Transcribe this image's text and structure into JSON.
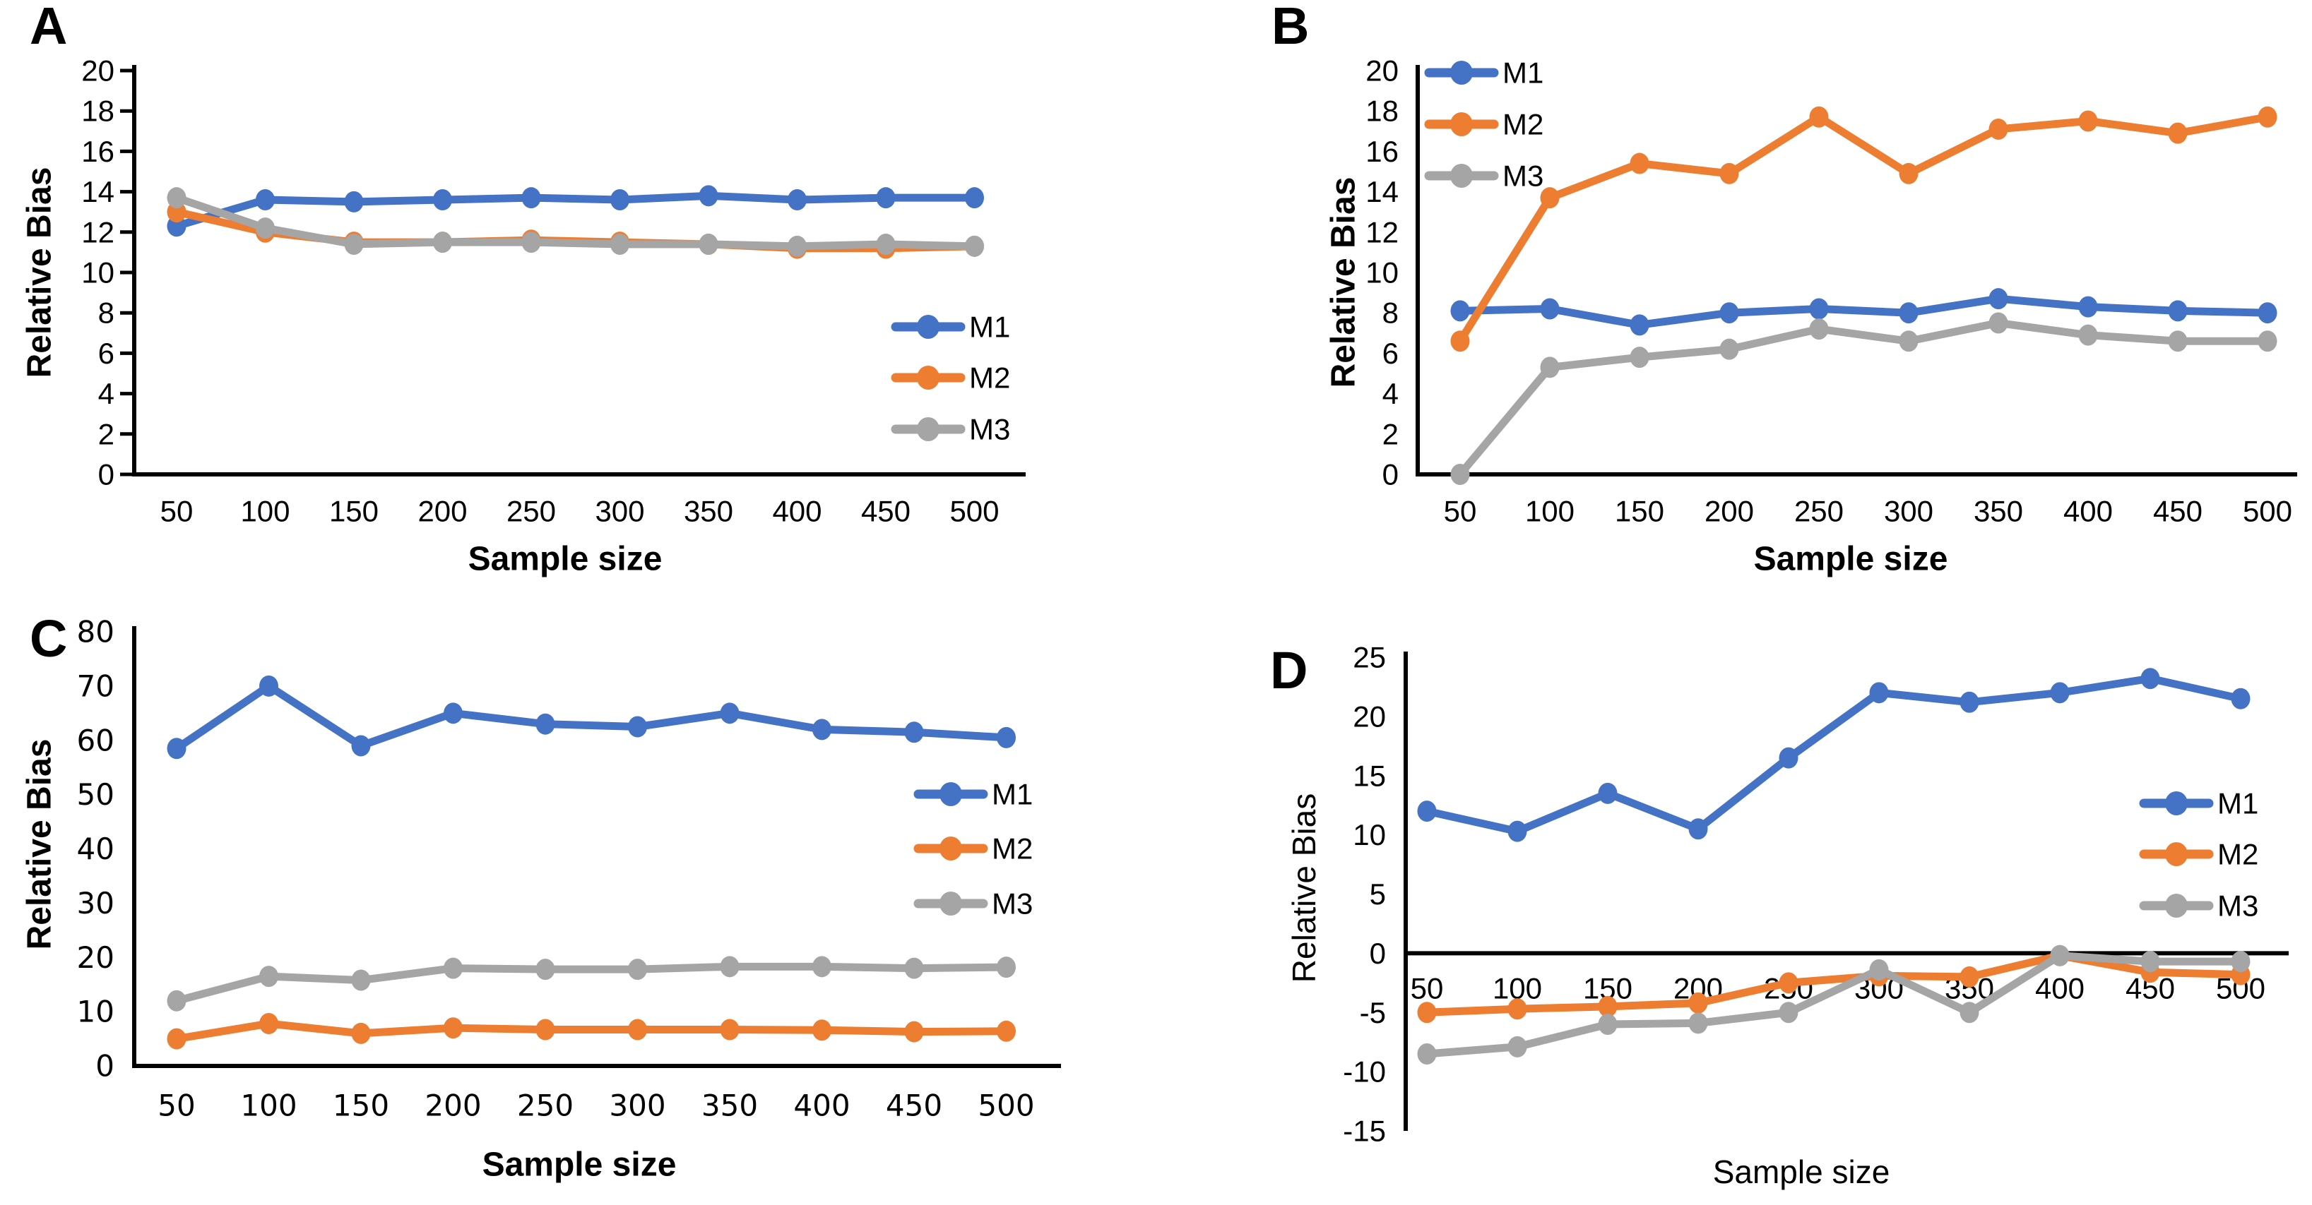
{
  "figure": {
    "background": "#ffffff",
    "axis_color": "#000000",
    "text_color": "#000000",
    "series_colors": {
      "M1": "#4472C4",
      "M2": "#ED7D31",
      "M3": "#A5A5A5"
    },
    "legend_entries": [
      "M1",
      "M2",
      "M3"
    ],
    "x_axis_label": "Sample size",
    "y_axis_label": "Relative Bias"
  },
  "chart_data": [
    {
      "type": "line",
      "panel": "A",
      "title": "",
      "xlabel": "Sample size",
      "ylabel": "Relative Bias",
      "x": [
        50,
        100,
        150,
        200,
        250,
        300,
        350,
        400,
        450,
        500
      ],
      "x_tick_labels": [
        "50",
        "100",
        "150",
        "200",
        "250",
        "300",
        "350",
        "400",
        "450",
        "500"
      ],
      "ylim": [
        0,
        20
      ],
      "y_ticks": [
        0,
        2,
        4,
        6,
        8,
        10,
        12,
        14,
        16,
        18,
        20
      ],
      "grid": false,
      "legend_position": "right-middle",
      "series": [
        {
          "name": "M1",
          "color": "#4472C4",
          "values": [
            12.3,
            13.6,
            13.5,
            13.6,
            13.7,
            13.6,
            13.8,
            13.6,
            13.7,
            13.7
          ]
        },
        {
          "name": "M2",
          "color": "#ED7D31",
          "values": [
            13.0,
            12.0,
            11.5,
            11.5,
            11.6,
            11.5,
            11.4,
            11.2,
            11.2,
            11.3
          ]
        },
        {
          "name": "M3",
          "color": "#A5A5A5",
          "values": [
            13.7,
            12.2,
            11.4,
            11.5,
            11.5,
            11.4,
            11.4,
            11.3,
            11.4,
            11.3
          ]
        }
      ]
    },
    {
      "type": "line",
      "panel": "B",
      "title": "",
      "xlabel": "Sample size",
      "ylabel": "Relative Bias",
      "x": [
        50,
        100,
        150,
        200,
        250,
        300,
        350,
        400,
        450,
        500
      ],
      "x_tick_labels": [
        "50",
        "100",
        "150",
        "200",
        "250",
        "300",
        "350",
        "400",
        "450",
        "500"
      ],
      "ylim": [
        0,
        20
      ],
      "y_ticks": [
        0,
        2,
        4,
        6,
        8,
        10,
        12,
        14,
        16,
        18,
        20
      ],
      "grid": false,
      "legend_position": "top-left",
      "series": [
        {
          "name": "M1",
          "color": "#4472C4",
          "values": [
            8.1,
            8.2,
            7.4,
            8.0,
            8.2,
            8.0,
            8.7,
            8.3,
            8.1,
            8.0
          ]
        },
        {
          "name": "M2",
          "color": "#ED7D31",
          "values": [
            6.6,
            13.7,
            15.4,
            14.9,
            17.7,
            14.9,
            17.1,
            17.5,
            16.9,
            17.7
          ]
        },
        {
          "name": "M3",
          "color": "#A5A5A5",
          "values": [
            0.0,
            5.3,
            5.8,
            6.2,
            7.2,
            6.6,
            7.5,
            6.9,
            6.6,
            6.6
          ]
        }
      ]
    },
    {
      "type": "line",
      "panel": "C",
      "title": "",
      "xlabel": "Sample size",
      "ylabel": "Relative Bias",
      "x": [
        50,
        100,
        150,
        200,
        250,
        300,
        350,
        400,
        450,
        500
      ],
      "x_tick_labels": [
        "50",
        "100",
        "150",
        "200",
        "250",
        "300",
        "350",
        "400",
        "450",
        "500"
      ],
      "ylim": [
        0,
        80
      ],
      "y_ticks": [
        0,
        10,
        20,
        30,
        40,
        50,
        60,
        70,
        80
      ],
      "grid": false,
      "legend_position": "right-middle",
      "series": [
        {
          "name": "M1",
          "color": "#4472C4",
          "values": [
            58.5,
            70.0,
            59.0,
            65.0,
            63.0,
            62.5,
            65.0,
            62.0,
            61.5,
            60.5
          ]
        },
        {
          "name": "M2",
          "color": "#ED7D31",
          "values": [
            5.0,
            7.8,
            6.0,
            7.0,
            6.7,
            6.7,
            6.7,
            6.6,
            6.3,
            6.4
          ]
        },
        {
          "name": "M3",
          "color": "#A5A5A5",
          "values": [
            12.0,
            16.5,
            15.8,
            18.0,
            17.8,
            17.8,
            18.3,
            18.3,
            18.0,
            18.2
          ]
        }
      ]
    },
    {
      "type": "line",
      "panel": "D",
      "title": "",
      "xlabel": "Sample size",
      "ylabel": "Relative Bias",
      "x": [
        50,
        100,
        150,
        200,
        250,
        300,
        350,
        400,
        450,
        500
      ],
      "x_tick_labels": [
        "50",
        "100",
        "150",
        "200",
        "250",
        "300",
        "350",
        "400",
        "450",
        "500"
      ],
      "ylim": [
        -15,
        25
      ],
      "y_ticks": [
        25,
        20,
        15,
        10,
        5,
        0,
        -5,
        -10,
        -15
      ],
      "grid": false,
      "x_axis_at_zero": true,
      "legend_position": "right-middle",
      "series": [
        {
          "name": "M1",
          "color": "#4472C4",
          "values": [
            12.0,
            10.3,
            13.5,
            10.5,
            16.5,
            22.0,
            21.2,
            22.0,
            23.2,
            21.5
          ]
        },
        {
          "name": "M2",
          "color": "#ED7D31",
          "values": [
            -5.0,
            -4.7,
            -4.5,
            -4.2,
            -2.5,
            -1.9,
            -2.0,
            -0.2,
            -1.6,
            -1.8
          ]
        },
        {
          "name": "M3",
          "color": "#A5A5A5",
          "values": [
            -8.5,
            -7.9,
            -6.0,
            -5.9,
            -5.0,
            -1.4,
            -5.0,
            -0.2,
            -0.7,
            -0.7
          ]
        }
      ]
    }
  ]
}
